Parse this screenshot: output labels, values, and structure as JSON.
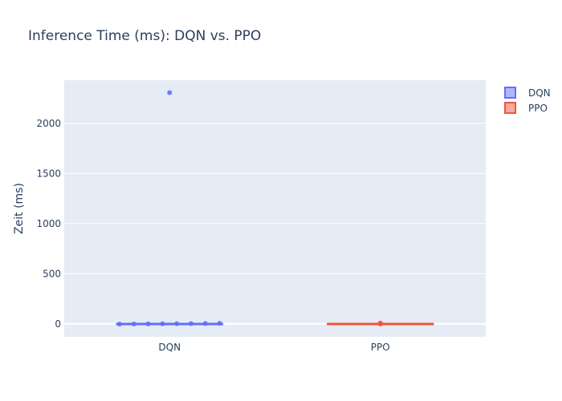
{
  "chart_data": {
    "type": "box",
    "title": "Inference Time (ms): DQN vs. PPO",
    "xlabel": "",
    "ylabel": "Zeit (ms)",
    "categories": [
      "DQN",
      "PPO"
    ],
    "ylim": [
      -130,
      2430
    ],
    "yticks": [
      0,
      500,
      1000,
      1500,
      2000
    ],
    "legend_position": "top-right",
    "grid": true,
    "series": [
      {
        "name": "DQN",
        "color": "#636efa",
        "min": -4,
        "q1": -1,
        "median": 0,
        "q3": 2,
        "max": 6,
        "points": [
          -3,
          -2,
          -1,
          0,
          1,
          2,
          3,
          5,
          2306
        ]
      },
      {
        "name": "PPO",
        "color": "#ef553b",
        "min": -1,
        "q1": 0,
        "median": 1,
        "q3": 2,
        "max": 4,
        "points": [
          -1,
          0,
          1,
          2,
          4,
          6
        ]
      }
    ]
  }
}
